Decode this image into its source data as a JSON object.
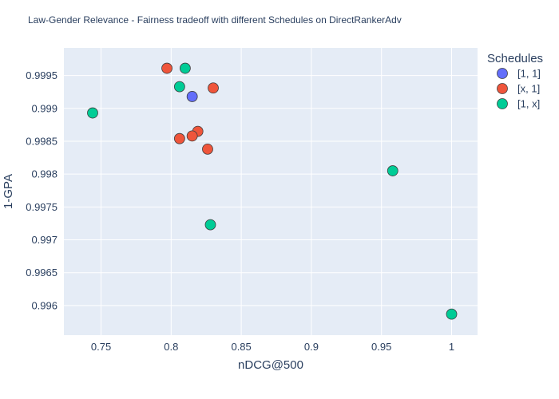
{
  "chart_data": {
    "type": "scatter",
    "title": "Law-Gender Relevance - Fairness tradeoff with different Schedules on DirectRankerAdv",
    "xlabel": "nDCG@500",
    "ylabel": "1-GPA",
    "xlim": [
      0.7235,
      1.0185
    ],
    "ylim": [
      0.99555,
      0.99992
    ],
    "xticks": [
      0.75,
      0.8,
      0.85,
      0.9,
      0.95,
      1
    ],
    "xtick_labels": [
      "0.75",
      "0.8",
      "0.85",
      "0.9",
      "0.95",
      "1"
    ],
    "yticks": [
      0.996,
      0.9965,
      0.997,
      0.9975,
      0.998,
      0.9985,
      0.999,
      0.9995
    ],
    "ytick_labels": [
      "0.996",
      "0.9965",
      "0.997",
      "0.9975",
      "0.998",
      "0.9985",
      "0.999",
      "0.9995"
    ],
    "grid": true,
    "legend_title": "Schedules",
    "legend_position": "top-right",
    "background": "#e5ecf6",
    "series": [
      {
        "name": "[1, 1]",
        "color": "#636efa",
        "points": [
          {
            "x": 0.815,
            "y": 0.99918
          }
        ]
      },
      {
        "name": "[x, 1]",
        "color": "#ef553b",
        "points": [
          {
            "x": 0.797,
            "y": 0.99961
          },
          {
            "x": 0.83,
            "y": 0.99931
          },
          {
            "x": 0.819,
            "y": 0.99865
          },
          {
            "x": 0.815,
            "y": 0.99858
          },
          {
            "x": 0.806,
            "y": 0.99854
          },
          {
            "x": 0.826,
            "y": 0.99838
          }
        ]
      },
      {
        "name": "[1, x]",
        "color": "#00cc96",
        "points": [
          {
            "x": 0.81,
            "y": 0.99961
          },
          {
            "x": 0.806,
            "y": 0.99933
          },
          {
            "x": 0.744,
            "y": 0.99893
          },
          {
            "x": 0.958,
            "y": 0.99805
          },
          {
            "x": 0.828,
            "y": 0.99723
          },
          {
            "x": 1.0,
            "y": 0.99587
          }
        ]
      }
    ]
  }
}
